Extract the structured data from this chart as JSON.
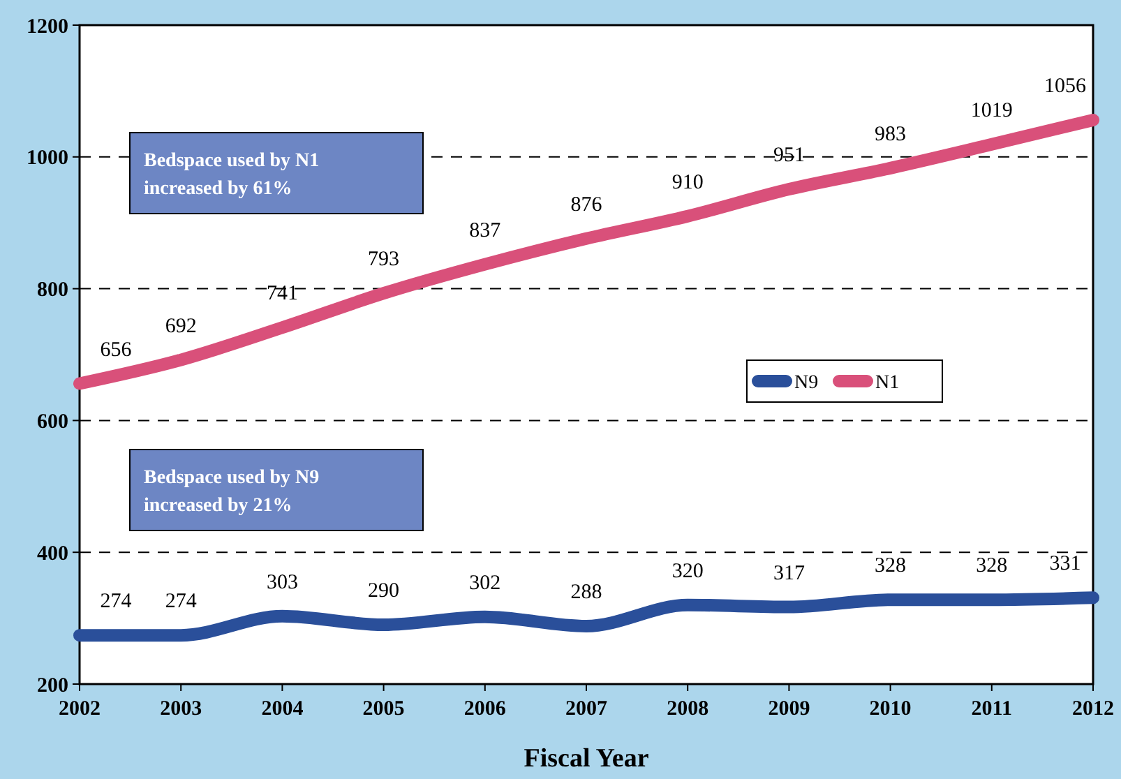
{
  "chart_data": {
    "type": "line",
    "xlabel": "Fiscal Year",
    "x": [
      2002,
      2003,
      2004,
      2005,
      2006,
      2007,
      2008,
      2009,
      2010,
      2011,
      2012
    ],
    "xlim": [
      2002,
      2012
    ],
    "xticks": [
      2002,
      2003,
      2004,
      2005,
      2006,
      2007,
      2008,
      2009,
      2010,
      2011,
      2012
    ],
    "ylim": [
      200,
      1200
    ],
    "yticks": [
      200,
      400,
      600,
      800,
      1000,
      1200
    ],
    "grid": "y",
    "line_style": "solid",
    "marker": "none",
    "legend": "right",
    "data_labels": true,
    "series": [
      {
        "name": "N9",
        "color": "#2a4f9a",
        "values": [
          274,
          274,
          303,
          290,
          302,
          288,
          320,
          317,
          328,
          328,
          331
        ]
      },
      {
        "name": "N1",
        "color": "#d9507a",
        "values": [
          656,
          692,
          741,
          793,
          837,
          876,
          910,
          951,
          983,
          1019,
          1056
        ]
      }
    ],
    "annotations": [
      "Bedspace used by N1 increased by 61%",
      "Bedspace used by N9 increased by 21%"
    ]
  }
}
